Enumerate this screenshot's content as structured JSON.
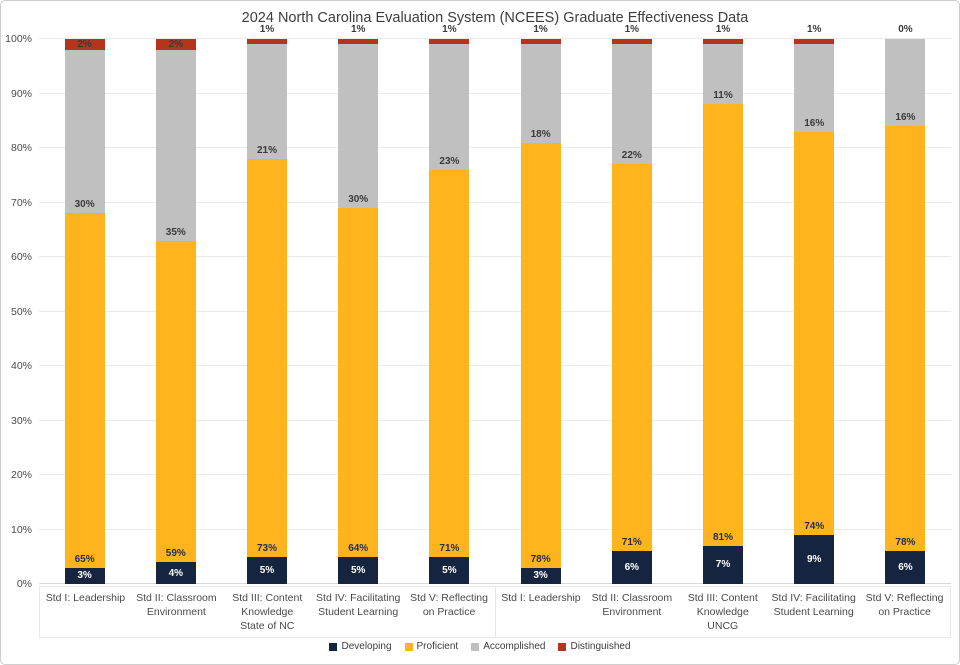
{
  "chart_data": {
    "type": "bar",
    "stacked": true,
    "title": "2024 North Carolina Evaluation System (NCEES) Graduate Effectiveness Data",
    "xlabel": "",
    "ylabel": "",
    "ylim": [
      0,
      100
    ],
    "yticks": [
      "0%",
      "10%",
      "20%",
      "30%",
      "40%",
      "50%",
      "60%",
      "70%",
      "80%",
      "90%",
      "100%"
    ],
    "grid": true,
    "legend_position": "bottom",
    "groups": [
      "State of NC",
      "UNCG"
    ],
    "categories": [
      "Std I: Leadership",
      "Std II: Classroom Environment",
      "Std III: Content Knowledge",
      "Std IV: Facilitating Student Learning",
      "Std V: Reflecting on Practice"
    ],
    "series": [
      {
        "name": "Developing",
        "color": "#16253F",
        "values": [
          [
            3,
            4,
            5,
            5,
            5
          ],
          [
            3,
            6,
            7,
            9,
            6
          ]
        ]
      },
      {
        "name": "Proficient",
        "color": "#FFB41E",
        "values": [
          [
            65,
            59,
            73,
            64,
            71
          ],
          [
            78,
            71,
            81,
            74,
            78
          ]
        ]
      },
      {
        "name": "Accomplished",
        "color": "#C0C0C0",
        "values": [
          [
            30,
            35,
            21,
            30,
            23
          ],
          [
            18,
            22,
            11,
            16,
            16
          ]
        ]
      },
      {
        "name": "Distinguished",
        "color": "#B5351C",
        "values": [
          [
            2,
            2,
            1,
            1,
            1
          ],
          [
            1,
            1,
            1,
            1,
            0
          ]
        ]
      }
    ],
    "data_label_format": "percent",
    "label_colors": {
      "developing": "#ffffff",
      "proficient": "#1F2C4E",
      "accomplished": "#3A3A3A",
      "distinguished": "#3A3A3A"
    }
  }
}
